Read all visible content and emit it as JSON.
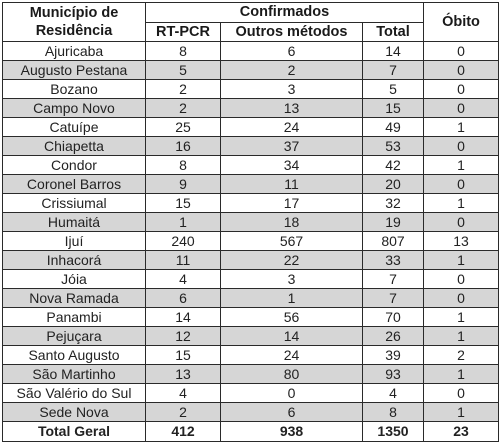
{
  "header": {
    "municipio_line1": "Município de",
    "municipio_line2": "Residência",
    "confirmados": "Confirmados",
    "rt_pcr": "RT-PCR",
    "outros_metodos": "Outros métodos",
    "total": "Total",
    "obito": "Óbito"
  },
  "rows": [
    {
      "municipio": "Ajuricaba",
      "rt_pcr": "8",
      "outros": "6",
      "total": "14",
      "obito": "0"
    },
    {
      "municipio": "Augusto Pestana",
      "rt_pcr": "5",
      "outros": "2",
      "total": "7",
      "obito": "0"
    },
    {
      "municipio": "Bozano",
      "rt_pcr": "2",
      "outros": "3",
      "total": "5",
      "obito": "0"
    },
    {
      "municipio": "Campo Novo",
      "rt_pcr": "2",
      "outros": "13",
      "total": "15",
      "obito": "0"
    },
    {
      "municipio": "Catuípe",
      "rt_pcr": "25",
      "outros": "24",
      "total": "49",
      "obito": "1"
    },
    {
      "municipio": "Chiapetta",
      "rt_pcr": "16",
      "outros": "37",
      "total": "53",
      "obito": "0"
    },
    {
      "municipio": "Condor",
      "rt_pcr": "8",
      "outros": "34",
      "total": "42",
      "obito": "1"
    },
    {
      "municipio": "Coronel Barros",
      "rt_pcr": "9",
      "outros": "11",
      "total": "20",
      "obito": "0"
    },
    {
      "municipio": "Crissiumal",
      "rt_pcr": "15",
      "outros": "17",
      "total": "32",
      "obito": "1"
    },
    {
      "municipio": "Humaitá",
      "rt_pcr": "1",
      "outros": "18",
      "total": "19",
      "obito": "0"
    },
    {
      "municipio": "Ijuí",
      "rt_pcr": "240",
      "outros": "567",
      "total": "807",
      "obito": "13"
    },
    {
      "municipio": "Inhacorá",
      "rt_pcr": "11",
      "outros": "22",
      "total": "33",
      "obito": "1"
    },
    {
      "municipio": "Jóia",
      "rt_pcr": "4",
      "outros": "3",
      "total": "7",
      "obito": "0"
    },
    {
      "municipio": "Nova Ramada",
      "rt_pcr": "6",
      "outros": "1",
      "total": "7",
      "obito": "0"
    },
    {
      "municipio": "Panambi",
      "rt_pcr": "14",
      "outros": "56",
      "total": "70",
      "obito": "1"
    },
    {
      "municipio": "Pejuçara",
      "rt_pcr": "12",
      "outros": "14",
      "total": "26",
      "obito": "1"
    },
    {
      "municipio": "Santo Augusto",
      "rt_pcr": "15",
      "outros": "24",
      "total": "39",
      "obito": "2"
    },
    {
      "municipio": "São Martinho",
      "rt_pcr": "13",
      "outros": "80",
      "total": "93",
      "obito": "1"
    },
    {
      "municipio": "São Valério do Sul",
      "rt_pcr": "4",
      "outros": "0",
      "total": "4",
      "obito": "0"
    },
    {
      "municipio": "Sede Nova",
      "rt_pcr": "2",
      "outros": "6",
      "total": "8",
      "obito": "1"
    }
  ],
  "footer": {
    "label": "Total Geral",
    "rt_pcr": "412",
    "outros": "938",
    "total": "1350",
    "obito": "23"
  },
  "colors": {
    "stripe": "#d6d6d6",
    "border": "#2a2a2a",
    "background": "#ffffff"
  }
}
